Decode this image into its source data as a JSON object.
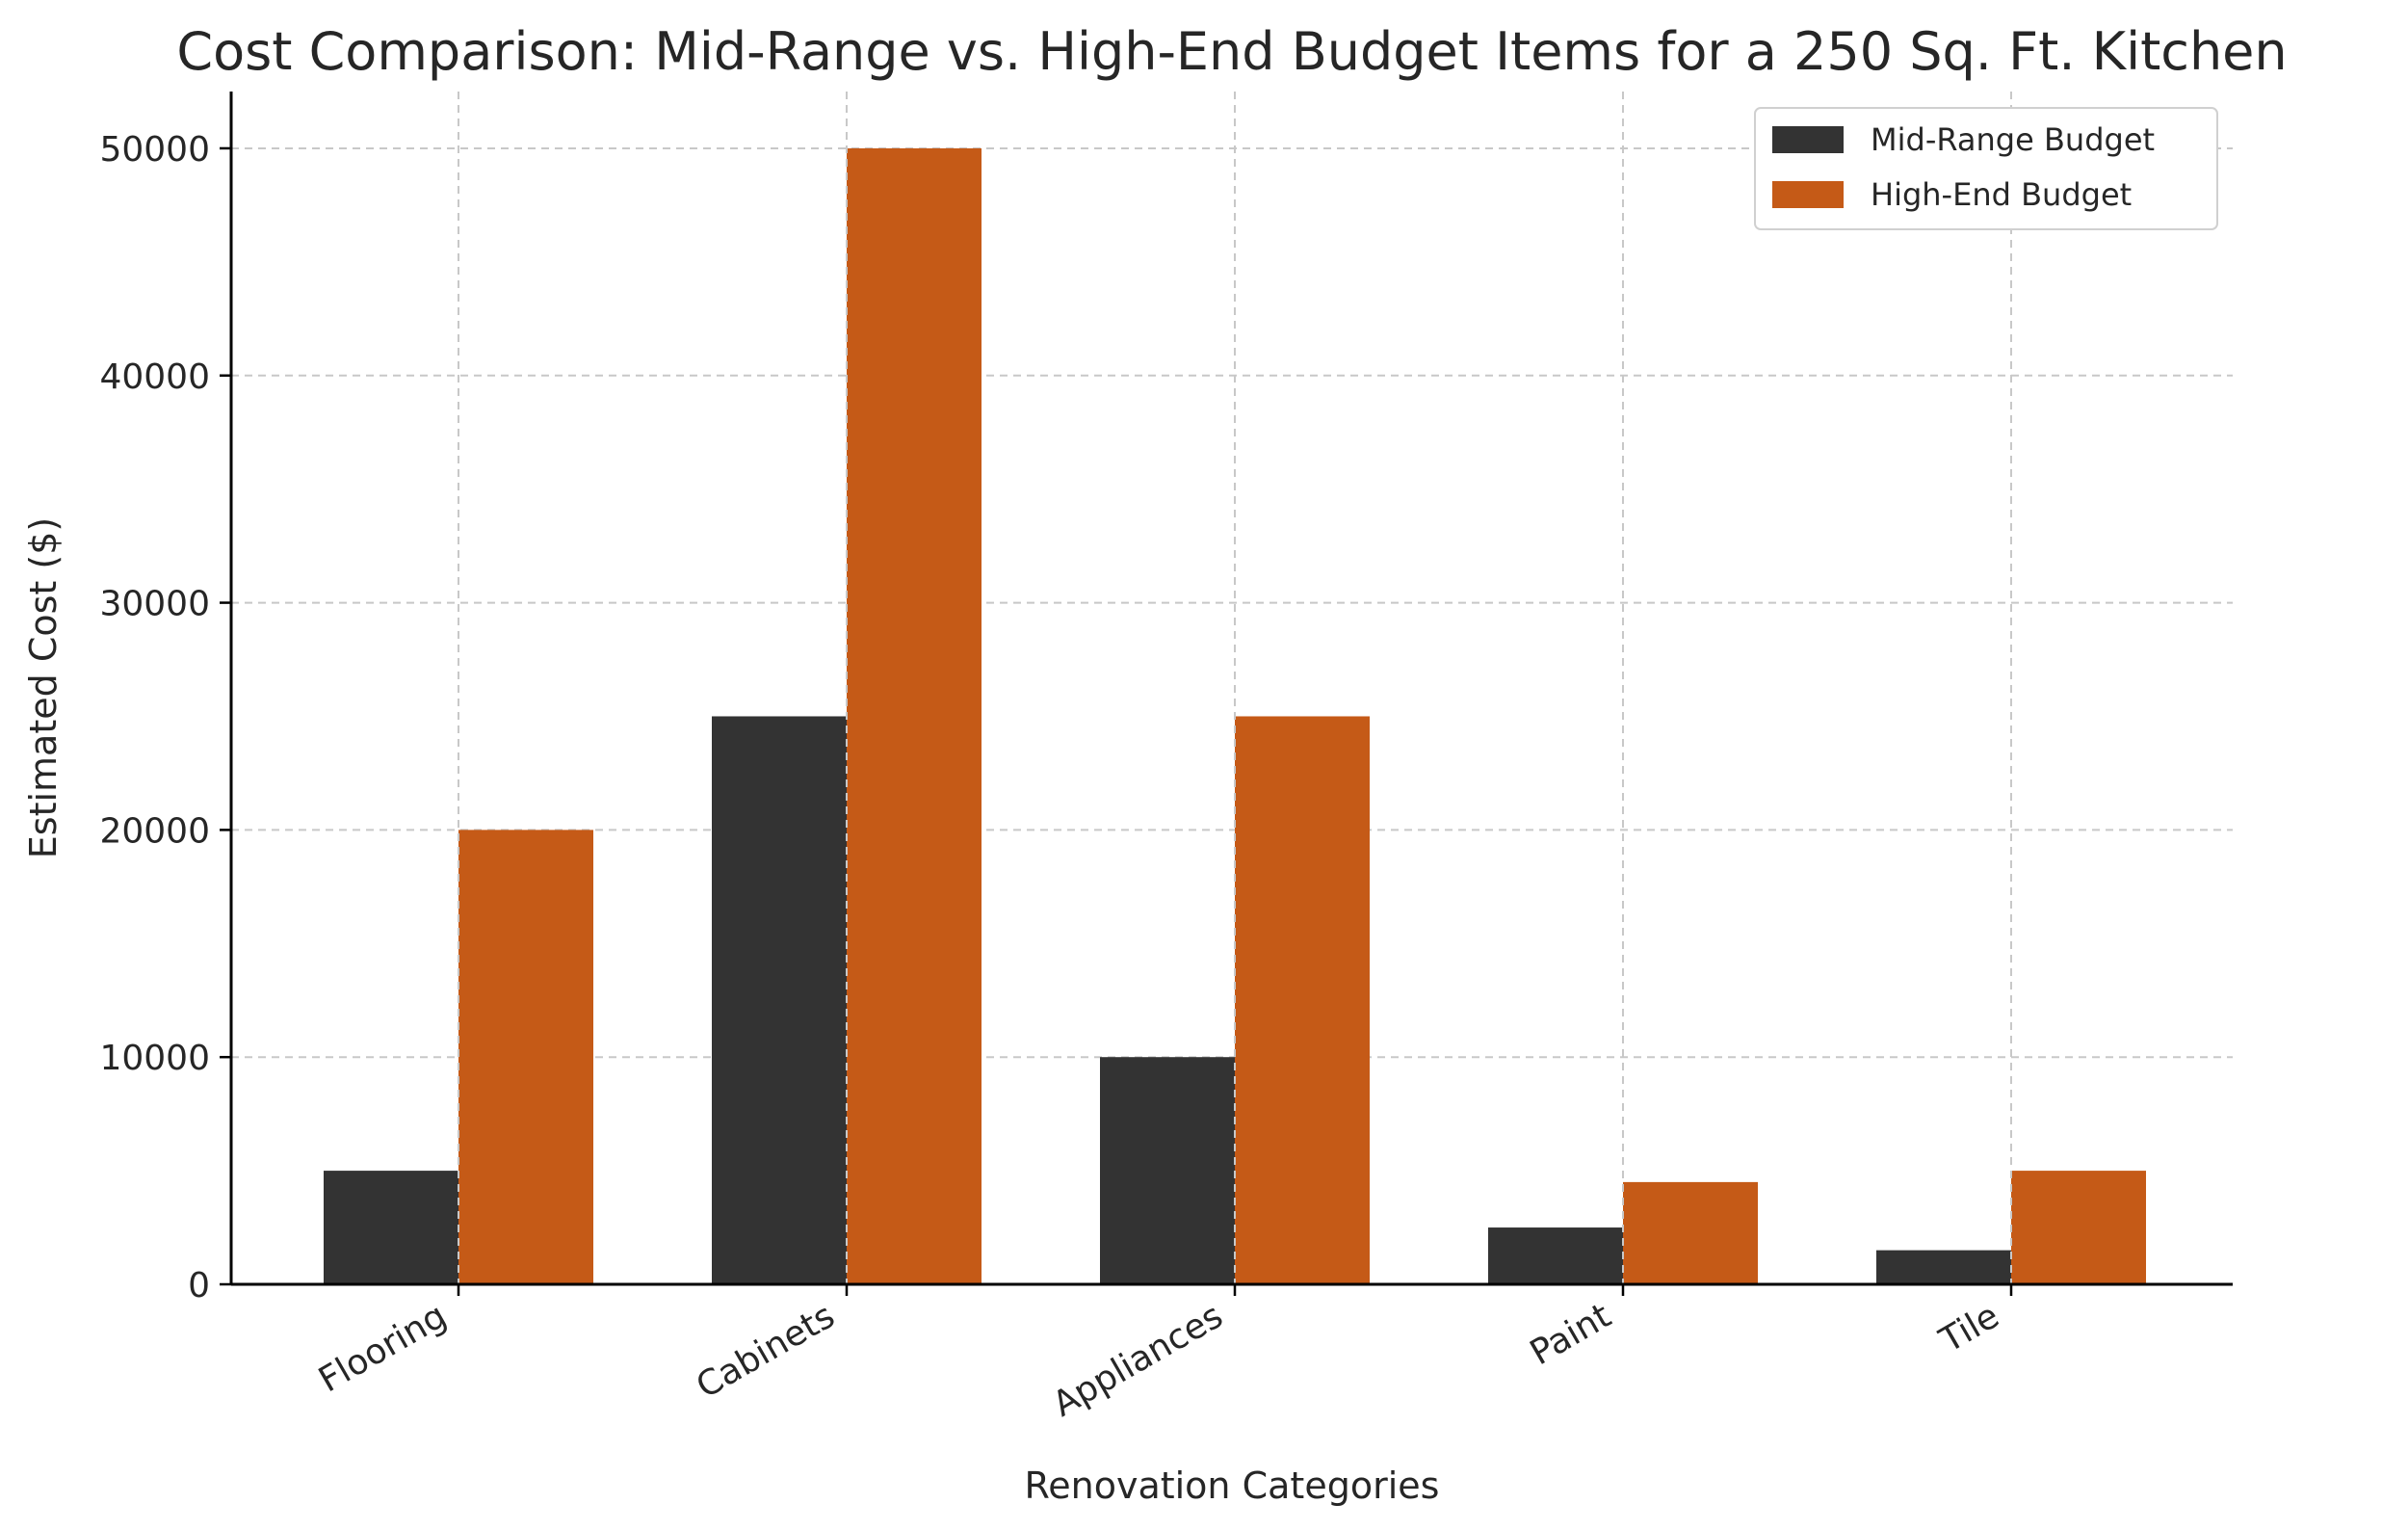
{
  "chart_data": {
    "type": "bar",
    "title": "Cost Comparison: Mid-Range vs. High-End Budget Items for a 250 Sq. Ft. Kitchen",
    "xlabel": "Renovation Categories",
    "ylabel": "Estimated Cost ($)",
    "categories": [
      "Flooring",
      "Cabinets",
      "Appliances",
      "Paint",
      "Tile"
    ],
    "series": [
      {
        "name": "Mid-Range Budget",
        "color": "#333333",
        "values": [
          5000,
          25000,
          10000,
          2500,
          1500
        ]
      },
      {
        "name": "High-End Budget",
        "color": "#c55a17",
        "values": [
          20000,
          50000,
          25000,
          4500,
          5000
        ]
      }
    ],
    "ylim": [
      0,
      52500
    ],
    "yticks": [
      0,
      10000,
      20000,
      30000,
      40000,
      50000
    ],
    "ytick_labels": [
      "0",
      "10000",
      "20000",
      "30000",
      "40000",
      "50000"
    ],
    "grid": true,
    "legend_position": "top-right"
  }
}
